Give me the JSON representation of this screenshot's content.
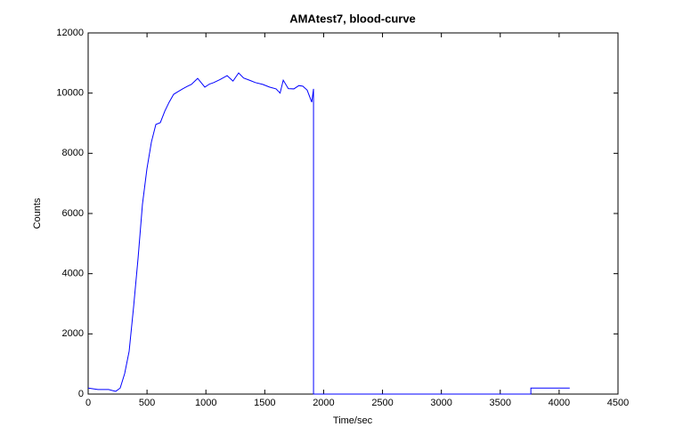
{
  "chart_data": {
    "type": "line",
    "title": "AMAtest7, blood-curve",
    "xlabel": "Time/sec",
    "ylabel": "Counts",
    "x": [
      0,
      83,
      174,
      234,
      272,
      310,
      348,
      386,
      424,
      461,
      499,
      537,
      575,
      613,
      651,
      688,
      726,
      764,
      802,
      840,
      877,
      930,
      991,
      1030,
      1067,
      1120,
      1180,
      1230,
      1278,
      1320,
      1369,
      1420,
      1483,
      1540,
      1596,
      1630,
      1657,
      1700,
      1747,
      1790,
      1823,
      1860,
      1899,
      1914,
      1914,
      3760,
      3760,
      4090
    ],
    "series": [
      {
        "color": "#0000ff",
        "values": [
          200,
          150,
          150,
          90,
          200,
          680,
          1420,
          2900,
          4520,
          6300,
          7480,
          8370,
          8960,
          9020,
          9400,
          9700,
          9960,
          10050,
          10140,
          10220,
          10290,
          10490,
          10200,
          10300,
          10350,
          10450,
          10580,
          10400,
          10670,
          10500,
          10430,
          10350,
          10290,
          10200,
          10140,
          10000,
          10430,
          10150,
          10140,
          10250,
          10230,
          10100,
          9700,
          10140,
          0,
          0,
          200,
          200
        ]
      }
    ],
    "xlim": [
      0,
      4500
    ],
    "xticks": [
      0,
      500,
      1000,
      1500,
      2000,
      2500,
      3000,
      3500,
      4000,
      4500
    ],
    "ylim": [
      0,
      12000
    ],
    "yticks": [
      0,
      2000,
      4000,
      6000,
      8000,
      10000,
      12000
    ],
    "grid": false
  }
}
